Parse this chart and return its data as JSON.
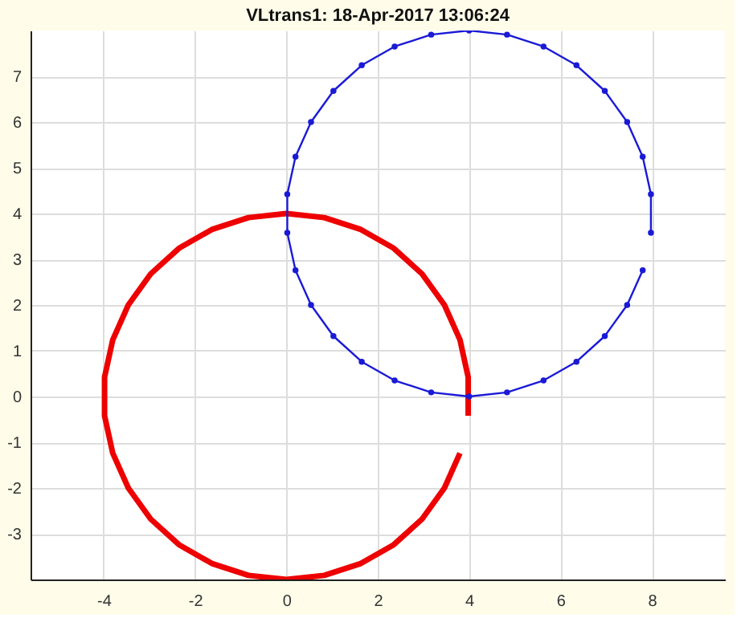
{
  "chart_data": {
    "type": "line",
    "title": "VLtrans1: 18-Apr-2017 13:06:24",
    "xlim": [
      -5.6,
      9.6
    ],
    "xticks": [
      -4,
      -2,
      0,
      2,
      4,
      6,
      8
    ],
    "ylim": [
      -4,
      8
    ],
    "yticks": [
      -3,
      -2,
      -1,
      0,
      1,
      2,
      3,
      4,
      5,
      6,
      7
    ],
    "grid": true,
    "series": [
      {
        "color": "#ee0000",
        "marker": "none",
        "x": [
          3.98,
          3.98,
          3.8,
          3.46,
          2.97,
          2.35,
          1.63,
          0.83,
          0,
          -0.83,
          -1.63,
          -2.35,
          -2.97,
          -3.46,
          -3.8,
          -3.98,
          -3.98,
          -3.8,
          -3.46,
          -2.97,
          -2.35,
          -1.63,
          -0.83,
          0,
          0.83,
          1.63,
          2.35,
          2.97,
          3.46,
          3.8
        ],
        "values": [
          -0.42,
          0.42,
          1.24,
          2.0,
          2.68,
          3.24,
          3.65,
          3.91,
          4,
          3.91,
          3.65,
          3.24,
          2.68,
          2.0,
          1.24,
          0.42,
          -0.42,
          -1.24,
          -2.0,
          -2.68,
          -3.24,
          -3.65,
          -3.91,
          -4,
          -3.91,
          -3.65,
          -3.24,
          -2.68,
          -2.0,
          -1.24
        ]
      },
      {
        "color": "#1a1ad6",
        "marker": "circle",
        "x": [
          7.98,
          7.98,
          7.8,
          7.46,
          6.97,
          6.35,
          5.63,
          4.83,
          4,
          3.17,
          2.37,
          1.65,
          1.03,
          0.54,
          0.2,
          0.02,
          0.02,
          0.2,
          0.54,
          1.03,
          1.65,
          2.37,
          3.17,
          4,
          4.83,
          5.63,
          6.35,
          6.97,
          7.46,
          7.8
        ],
        "values": [
          3.58,
          4.42,
          5.24,
          6.0,
          6.68,
          7.24,
          7.65,
          7.91,
          8,
          7.91,
          7.65,
          7.24,
          6.68,
          6.0,
          5.24,
          4.42,
          3.58,
          2.76,
          2.0,
          1.32,
          0.76,
          0.35,
          0.09,
          0,
          0.09,
          0.35,
          0.76,
          1.32,
          2.0,
          2.76
        ]
      }
    ]
  }
}
